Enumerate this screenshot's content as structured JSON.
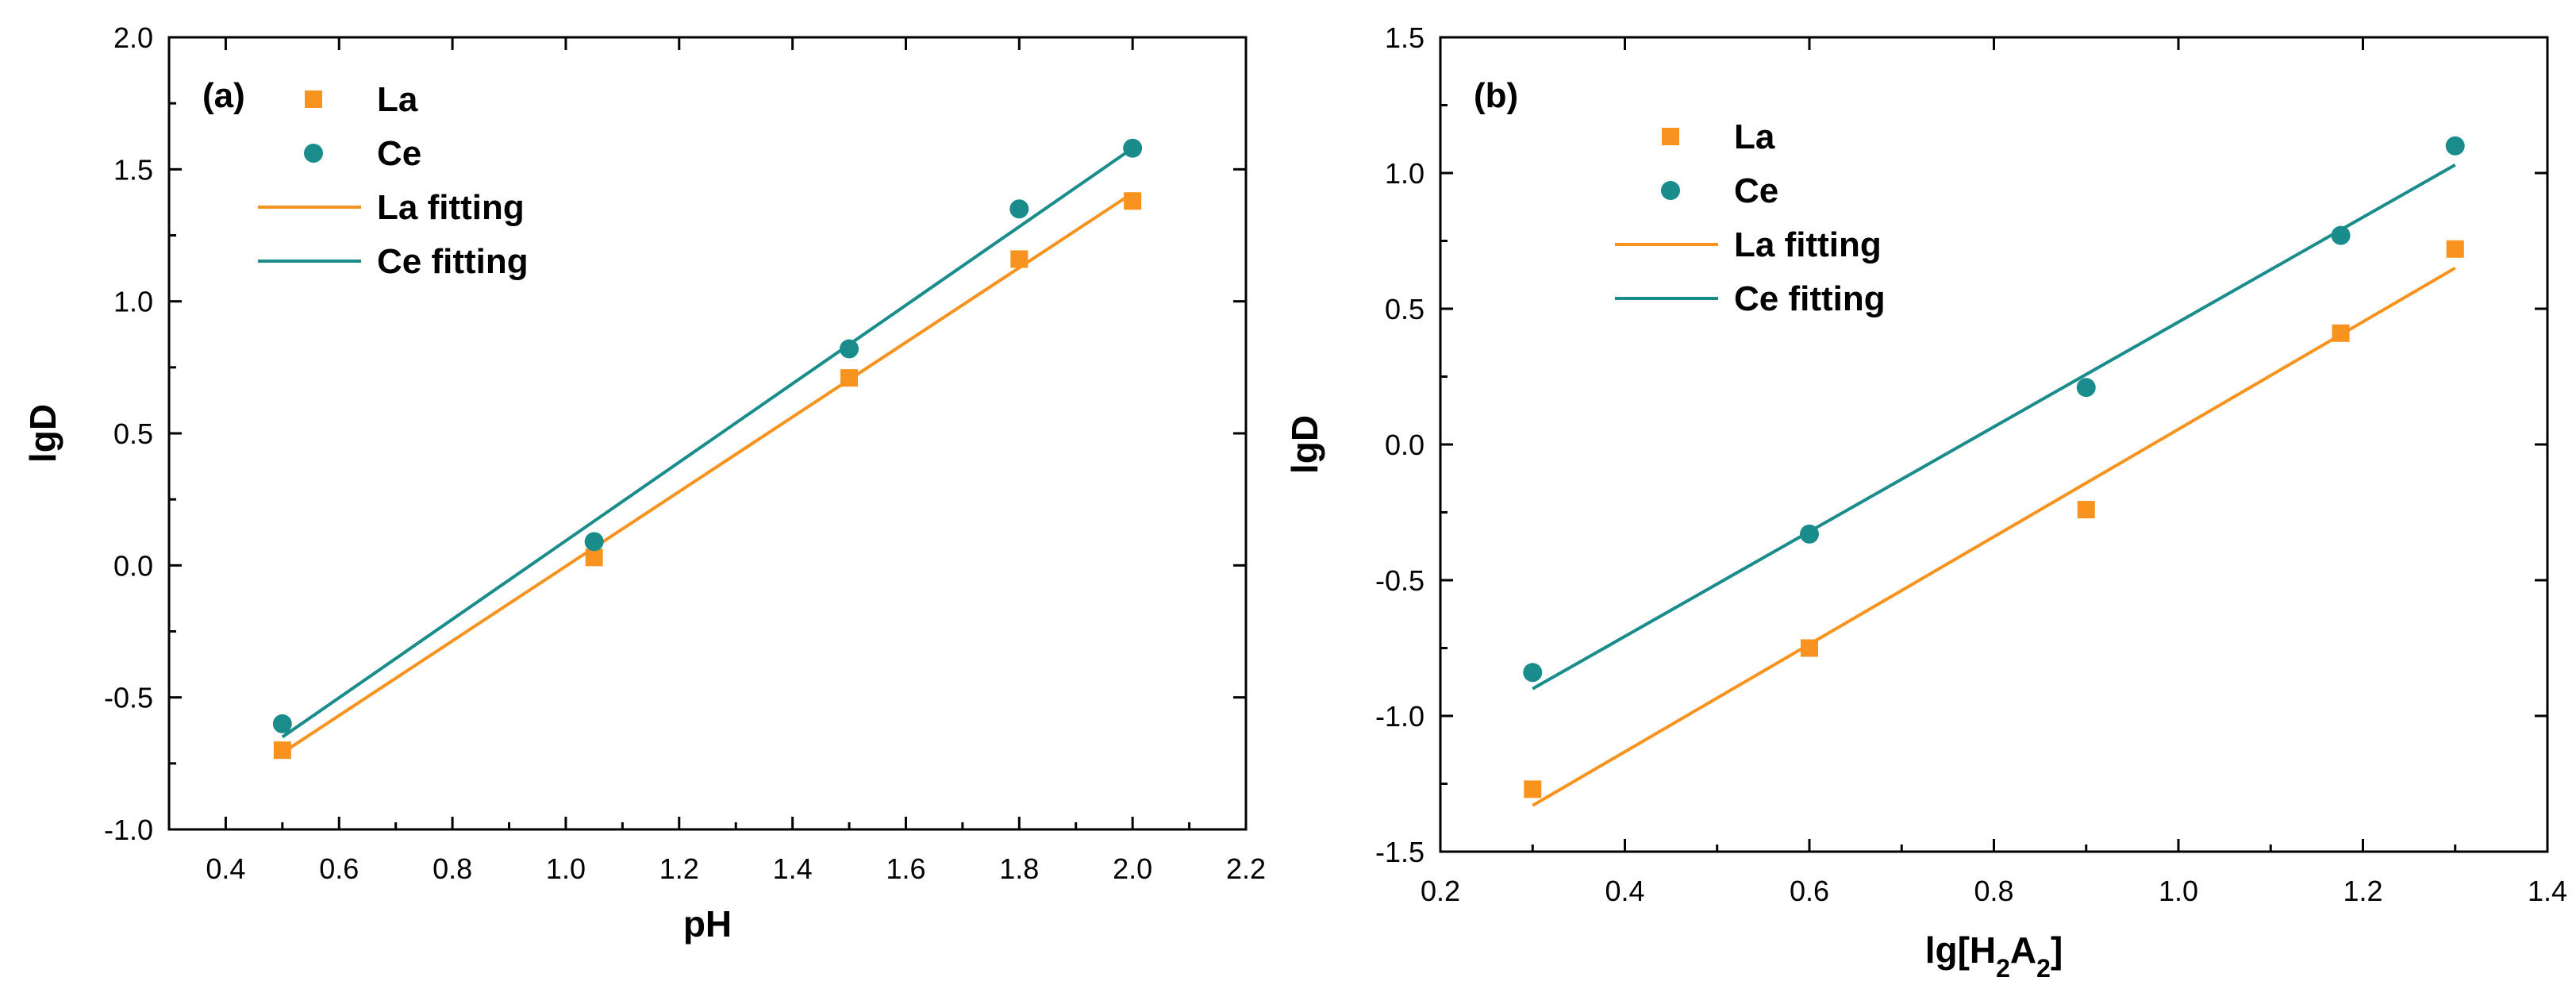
{
  "chart_data": [
    {
      "type": "scatter",
      "panel_label": "(a)",
      "xlabel": "pH",
      "ylabel": "lgD",
      "xlim": [
        0.3,
        2.2
      ],
      "ylim": [
        -1.0,
        2.0
      ],
      "xticks": [
        0.4,
        0.6,
        0.8,
        1.0,
        1.2,
        1.4,
        1.6,
        1.8,
        2.0,
        2.2
      ],
      "xtick_labels": [
        "0.4",
        "0.6",
        "0.8",
        "1.0",
        "1.2",
        "1.4",
        "1.6",
        "1.8",
        "2.0",
        "2.2"
      ],
      "yticks": [
        -1.0,
        -0.5,
        0.0,
        0.5,
        1.0,
        1.5,
        2.0
      ],
      "ytick_labels": [
        "-1.0",
        "-0.5",
        "0.0",
        "0.5",
        "1.0",
        "1.5",
        "2.0"
      ],
      "legend_position": "top-left",
      "series": [
        {
          "name": "La",
          "kind": "points",
          "marker": "square",
          "color": "#f7931e",
          "x": [
            0.5,
            1.05,
            1.5,
            1.8,
            2.0
          ],
          "y": [
            -0.7,
            0.03,
            0.71,
            1.16,
            1.38
          ]
        },
        {
          "name": "Ce",
          "kind": "points",
          "marker": "circle",
          "color": "#1a8c8c",
          "x": [
            0.5,
            1.05,
            1.5,
            1.8,
            2.0
          ],
          "y": [
            -0.6,
            0.09,
            0.82,
            1.35,
            1.58
          ]
        },
        {
          "name": "La fitting",
          "kind": "line",
          "color": "#f7931e",
          "x": [
            0.5,
            2.0
          ],
          "y": [
            -0.71,
            1.41
          ]
        },
        {
          "name": "Ce fitting",
          "kind": "line",
          "color": "#1a8c8c",
          "x": [
            0.5,
            2.0
          ],
          "y": [
            -0.65,
            1.58
          ]
        }
      ]
    },
    {
      "type": "scatter",
      "panel_label": "(b)",
      "xlabel": "lg[H",
      "xlabel_sub1": "2",
      "xlabel_mid": "A",
      "xlabel_sub2": "2",
      "xlabel_end": "]",
      "ylabel": "lgD",
      "xlim": [
        0.2,
        1.4
      ],
      "ylim": [
        -1.5,
        1.5
      ],
      "xticks": [
        0.2,
        0.4,
        0.6,
        0.8,
        1.0,
        1.2,
        1.4
      ],
      "xtick_labels": [
        "0.2",
        "0.4",
        "0.6",
        "0.8",
        "1.0",
        "1.2",
        "1.4"
      ],
      "yticks": [
        -1.5,
        -1.0,
        -0.5,
        0.0,
        0.5,
        1.0,
        1.5
      ],
      "ytick_labels": [
        "-1.5",
        "-1.0",
        "-0.5",
        "0.0",
        "0.5",
        "1.0",
        "1.5"
      ],
      "legend_position": "top-left",
      "series": [
        {
          "name": "La",
          "kind": "points",
          "marker": "square",
          "color": "#f7931e",
          "x": [
            0.3,
            0.6,
            0.9,
            1.176,
            1.3
          ],
          "y": [
            -1.27,
            -0.75,
            -0.24,
            0.41,
            0.72
          ]
        },
        {
          "name": "Ce",
          "kind": "points",
          "marker": "circle",
          "color": "#1a8c8c",
          "x": [
            0.3,
            0.6,
            0.9,
            1.176,
            1.3
          ],
          "y": [
            -0.84,
            -0.33,
            0.21,
            0.77,
            1.1
          ]
        },
        {
          "name": "La fitting",
          "kind": "line",
          "color": "#f7931e",
          "x": [
            0.3,
            1.3
          ],
          "y": [
            -1.33,
            0.65
          ]
        },
        {
          "name": "Ce fitting",
          "kind": "line",
          "color": "#1a8c8c",
          "x": [
            0.3,
            1.3
          ],
          "y": [
            -0.9,
            1.03
          ]
        }
      ]
    }
  ]
}
